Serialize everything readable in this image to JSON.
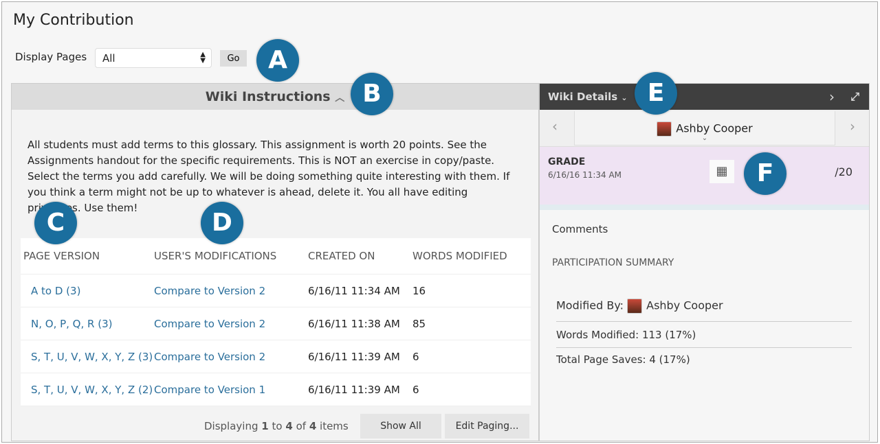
{
  "page": {
    "title": "My Contribution",
    "display_pages_label": "Display Pages",
    "display_pages_value": "All",
    "go_label": "Go"
  },
  "callouts": [
    "A",
    "B",
    "C",
    "D",
    "E",
    "F"
  ],
  "instructions": {
    "title": "Wiki Instructions",
    "text": "All students must add terms to this glossary. This assignment is worth 20 points. See the Assignments handout for the specific requirements. This is NOT an exercise in copy/paste. Select the terms you add carefully. We will be doing something quite interesting with them. If you think a term might not be up to whatever is ahead, delete it. You all have editing privileges. Use them!"
  },
  "table": {
    "headers": [
      "PAGE VERSION",
      "USER'S MODIFICATIONS",
      "CREATED ON",
      "WORDS MODIFIED"
    ],
    "rows": [
      [
        "A to D (3)",
        "Compare to Version 2",
        "6/16/11 11:34 AM",
        "16"
      ],
      [
        "N, O, P, Q, R (3)",
        "Compare to Version 2",
        "6/16/11 11:38 AM",
        "85"
      ],
      [
        "S, T, U, V, W, X, Y, Z (3)",
        "Compare to Version 2",
        "6/16/11 11:39 AM",
        "6"
      ],
      [
        "S, T, U, V, W, X, Y, Z (2)",
        "Compare to Version 1",
        "6/16/11 11:39 AM",
        "6"
      ]
    ]
  },
  "footer": {
    "displaying": "Displaying",
    "from": "1",
    "to_word": "to",
    "to": "4",
    "of_word": "of",
    "total": "4",
    "items_word": "items",
    "show_all": "Show All",
    "edit_paging": "Edit Paging..."
  },
  "details": {
    "title": "Wiki Details",
    "user": "Ashby Cooper",
    "grade_label": "GRADE",
    "grade_date": "6/16/16 11:34 AM",
    "grade_value": "/20",
    "comments": "Comments",
    "participation": "PARTICIPATION SUMMARY",
    "modified_by_label": "Modified By:",
    "modified_by": "Ashby Cooper",
    "words_modified": "Words Modified: 113 (17%)",
    "page_saves": "Total Page Saves: 4 (17%)"
  },
  "colors": {
    "callout": "#1a6e9e",
    "link": "#2a6e9b",
    "header_dark": "#3f3f3f",
    "grade_bg": "#efe3f3"
  }
}
